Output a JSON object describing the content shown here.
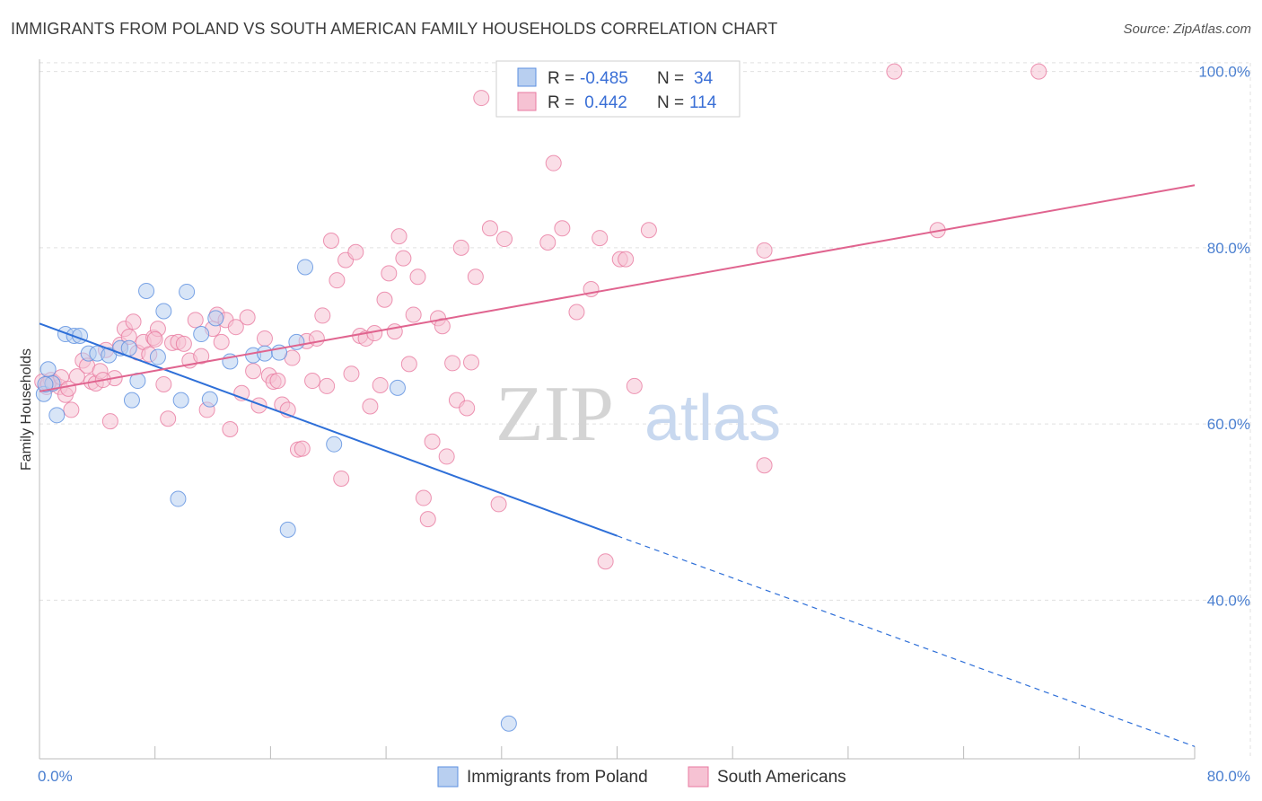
{
  "title": "IMMIGRANTS FROM POLAND VS SOUTH AMERICAN FAMILY HOUSEHOLDS CORRELATION CHART",
  "source": "Source: ZipAtlas.com",
  "watermark": {
    "zip": "ZIP",
    "atlas": "atlas"
  },
  "colors": {
    "blue": "#5b8fe0",
    "blue_fill": "#b8cff0",
    "blue_line": "#2e6fd8",
    "pink": "#e87aa0",
    "pink_fill": "#f6c2d3",
    "pink_line": "#e0648f",
    "grid": "#e0e0e0",
    "tick": "#4a7fd0"
  },
  "legend": {
    "rows": [
      {
        "r_label": "R =",
        "r_value": "-0.485",
        "n_label": "N =",
        "n_value": "34"
      },
      {
        "r_label": "R =",
        "r_value": " 0.442",
        "n_label": "N =",
        "n_value": "114"
      }
    ]
  },
  "bottom_legend": [
    "Immigrants from Poland",
    "South Americans"
  ],
  "chart_data": {
    "type": "scatter",
    "title": "IMMIGRANTS FROM POLAND VS SOUTH AMERICAN FAMILY HOUSEHOLDS CORRELATION CHART",
    "xlabel": "",
    "ylabel": "Family Households",
    "xlim": [
      0,
      80
    ],
    "ylim": [
      22,
      102
    ],
    "x_tick_labels": [
      "0.0%",
      "80.0%"
    ],
    "y_ticks": [
      40,
      60,
      80,
      100
    ],
    "y_tick_labels": [
      "40.0%",
      "60.0%",
      "80.0%",
      "100.0%"
    ],
    "grid": true,
    "legend_position": "top-center",
    "series": [
      {
        "name": "Immigrants from Poland",
        "color": "#5b8fe0",
        "r": -0.485,
        "n": 34,
        "trend": {
          "x": [
            0,
            40
          ],
          "y": [
            71.4,
            47.3
          ],
          "dashed_to": [
            80,
            23.4
          ]
        },
        "points": [
          [
            0.3,
            63.4
          ],
          [
            0.6,
            66.2
          ],
          [
            0.9,
            64.6
          ],
          [
            1.2,
            61.0
          ],
          [
            1.8,
            70.2
          ],
          [
            2.4,
            70.0
          ],
          [
            2.8,
            70.0
          ],
          [
            3.4,
            68.0
          ],
          [
            4.0,
            68.0
          ],
          [
            4.8,
            67.8
          ],
          [
            5.6,
            68.6
          ],
          [
            6.2,
            68.6
          ],
          [
            6.4,
            62.7
          ],
          [
            6.8,
            64.9
          ],
          [
            7.4,
            75.1
          ],
          [
            8.2,
            67.6
          ],
          [
            8.6,
            72.8
          ],
          [
            9.6,
            51.5
          ],
          [
            9.8,
            62.7
          ],
          [
            10.2,
            75.0
          ],
          [
            11.2,
            70.2
          ],
          [
            11.8,
            62.8
          ],
          [
            12.2,
            72.0
          ],
          [
            13.2,
            67.1
          ],
          [
            14.8,
            67.8
          ],
          [
            15.6,
            68.0
          ],
          [
            16.6,
            68.1
          ],
          [
            17.2,
            48.0
          ],
          [
            17.8,
            69.3
          ],
          [
            18.4,
            77.8
          ],
          [
            20.4,
            57.7
          ],
          [
            24.8,
            64.1
          ],
          [
            32.5,
            26.0
          ],
          [
            0.4,
            64.5
          ]
        ]
      },
      {
        "name": "South Americans",
        "color": "#e87aa0",
        "r": 0.442,
        "n": 114,
        "trend": {
          "x": [
            0,
            80
          ],
          "y": [
            63.7,
            87.1
          ]
        },
        "points": [
          [
            0.2,
            64.8
          ],
          [
            0.5,
            64.2
          ],
          [
            0.8,
            65.0
          ],
          [
            1.0,
            64.7
          ],
          [
            1.4,
            64.2
          ],
          [
            1.8,
            63.3
          ],
          [
            2.2,
            61.6
          ],
          [
            2.6,
            65.4
          ],
          [
            3.0,
            67.2
          ],
          [
            3.3,
            66.6
          ],
          [
            3.6,
            64.8
          ],
          [
            3.9,
            64.6
          ],
          [
            4.2,
            66.0
          ],
          [
            4.6,
            68.4
          ],
          [
            4.9,
            60.3
          ],
          [
            5.2,
            65.2
          ],
          [
            5.6,
            69.0
          ],
          [
            5.9,
            70.8
          ],
          [
            6.2,
            69.9
          ],
          [
            6.5,
            71.6
          ],
          [
            6.8,
            68.1
          ],
          [
            7.2,
            69.3
          ],
          [
            7.6,
            67.9
          ],
          [
            7.9,
            69.8
          ],
          [
            8.2,
            70.8
          ],
          [
            8.6,
            64.5
          ],
          [
            8.9,
            60.6
          ],
          [
            9.2,
            69.2
          ],
          [
            9.6,
            69.3
          ],
          [
            10.0,
            69.1
          ],
          [
            10.4,
            67.2
          ],
          [
            10.8,
            71.8
          ],
          [
            11.2,
            67.7
          ],
          [
            11.6,
            61.6
          ],
          [
            12.0,
            70.8
          ],
          [
            12.3,
            72.4
          ],
          [
            12.6,
            69.3
          ],
          [
            12.9,
            71.8
          ],
          [
            13.2,
            59.4
          ],
          [
            13.6,
            71.0
          ],
          [
            14.0,
            63.5
          ],
          [
            14.4,
            72.1
          ],
          [
            14.8,
            66.0
          ],
          [
            15.2,
            62.1
          ],
          [
            15.6,
            69.7
          ],
          [
            15.9,
            65.5
          ],
          [
            16.2,
            64.8
          ],
          [
            16.5,
            64.9
          ],
          [
            16.8,
            62.2
          ],
          [
            17.2,
            61.6
          ],
          [
            17.5,
            67.5
          ],
          [
            17.9,
            57.1
          ],
          [
            18.2,
            57.2
          ],
          [
            18.5,
            69.4
          ],
          [
            18.9,
            64.9
          ],
          [
            19.2,
            69.7
          ],
          [
            19.6,
            72.3
          ],
          [
            19.9,
            64.3
          ],
          [
            20.2,
            80.8
          ],
          [
            20.6,
            76.3
          ],
          [
            20.9,
            53.8
          ],
          [
            21.2,
            78.6
          ],
          [
            21.6,
            65.7
          ],
          [
            21.9,
            79.5
          ],
          [
            22.2,
            70.0
          ],
          [
            22.6,
            69.7
          ],
          [
            22.9,
            62.0
          ],
          [
            23.2,
            70.3
          ],
          [
            23.6,
            64.4
          ],
          [
            23.9,
            74.1
          ],
          [
            24.2,
            77.1
          ],
          [
            24.6,
            70.5
          ],
          [
            24.9,
            81.3
          ],
          [
            25.2,
            78.8
          ],
          [
            25.6,
            66.8
          ],
          [
            25.9,
            72.4
          ],
          [
            26.2,
            76.7
          ],
          [
            26.6,
            51.6
          ],
          [
            26.9,
            49.2
          ],
          [
            27.2,
            58.0
          ],
          [
            27.6,
            72.0
          ],
          [
            27.9,
            71.1
          ],
          [
            28.2,
            56.3
          ],
          [
            28.6,
            66.9
          ],
          [
            28.9,
            62.7
          ],
          [
            29.2,
            80.0
          ],
          [
            29.6,
            61.8
          ],
          [
            29.9,
            67.0
          ],
          [
            30.2,
            76.7
          ],
          [
            30.6,
            97.0
          ],
          [
            31.2,
            82.2
          ],
          [
            31.8,
            50.9
          ],
          [
            32.2,
            81.0
          ],
          [
            35.2,
            80.6
          ],
          [
            35.6,
            89.6
          ],
          [
            36.2,
            82.2
          ],
          [
            37.2,
            72.7
          ],
          [
            38.2,
            75.3
          ],
          [
            38.8,
            81.1
          ],
          [
            39.2,
            44.4
          ],
          [
            40.2,
            78.7
          ],
          [
            40.6,
            78.7
          ],
          [
            41.2,
            64.3
          ],
          [
            42.2,
            82.0
          ],
          [
            50.2,
            79.7
          ],
          [
            50.2,
            55.3
          ],
          [
            59.2,
            100.0
          ],
          [
            62.2,
            82.0
          ],
          [
            69.2,
            100.0
          ],
          [
            0.6,
            64.6
          ],
          [
            1.5,
            65.3
          ],
          [
            2.0,
            64.0
          ],
          [
            4.4,
            65.0
          ],
          [
            8.0,
            69.6
          ]
        ]
      }
    ]
  }
}
